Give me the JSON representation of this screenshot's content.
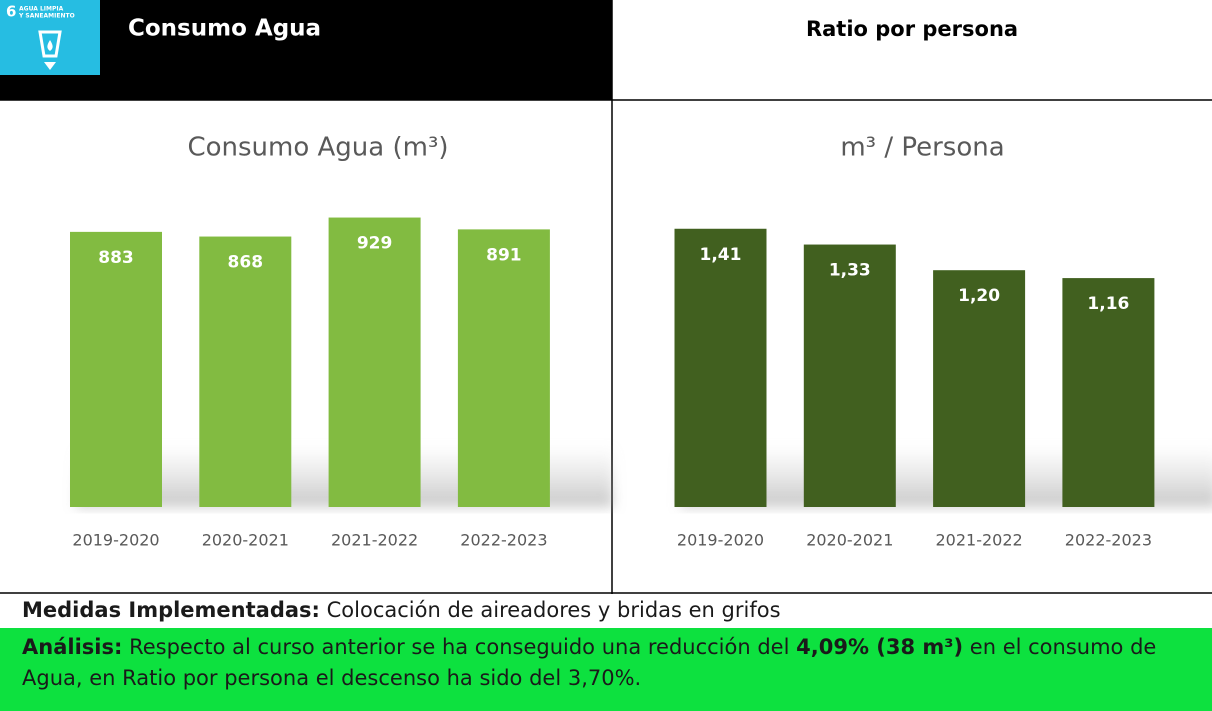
{
  "header": {
    "sdg_number": "6",
    "sdg_label_1": "AGUA LIMPIA",
    "sdg_label_2": "Y SANEAMIENTO",
    "left_title": "Consumo Agua",
    "right_title": "Ratio por persona"
  },
  "chart_data": [
    {
      "type": "bar",
      "title": "Consumo Agua (m³)",
      "categories": [
        "2019-2020",
        "2020-2021",
        "2021-2022",
        "2022-2023"
      ],
      "values": [
        883,
        868,
        929,
        891
      ],
      "color": "#82bb41",
      "ylim": [
        0,
        950
      ]
    },
    {
      "type": "bar",
      "title": "m³ / Persona",
      "categories": [
        "2019-2020",
        "2020-2021",
        "2021-2022",
        "2022-2023"
      ],
      "values": [
        1.41,
        1.33,
        1.2,
        1.16
      ],
      "value_labels": [
        "1,41",
        "1,33",
        "1,20",
        "1,16"
      ],
      "color": "#41601f",
      "ylim": [
        0,
        1.5
      ]
    }
  ],
  "measures": {
    "label": "Medidas Implementadas:",
    "text": "Colocación de aireadores y bridas en grifos"
  },
  "analysis": {
    "label": "Análisis:",
    "text_1": "Respecto al curso anterior se ha conseguido una reducción del",
    "highlight": "4,09% (38 m³)",
    "text_2": "en el consumo de Agua, en Ratio por persona el descenso ha sido del 3,70%."
  }
}
